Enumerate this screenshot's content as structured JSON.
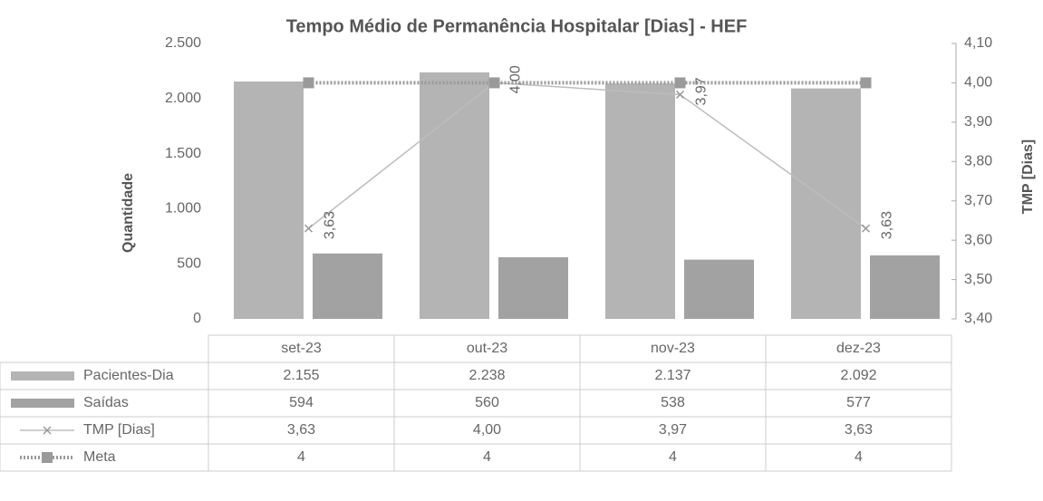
{
  "chart_data": {
    "type": "bar",
    "title": "Tempo Médio de Permanência Hospitalar [Dias] - HEF",
    "ylabel": "Quantidade",
    "y2label": "TMP [Dias]",
    "categories": [
      "set-23",
      "out-23",
      "nov-23",
      "dez-23"
    ],
    "series": [
      {
        "name": "Pacientes-Dia",
        "color": "#b4b4b4",
        "values": [
          2155,
          2238,
          2137,
          2092
        ],
        "value_labels": [
          "2.155",
          "2.238",
          "2.137",
          "2.092"
        ]
      },
      {
        "name": "Saídas",
        "color": "#a2a2a2",
        "values": [
          594,
          560,
          538,
          577
        ]
      },
      {
        "name": "TMP [Dias]",
        "color": "#bdbdbd",
        "type": "line",
        "axis": "y2",
        "values": [
          3.63,
          4.0,
          3.97,
          3.63
        ],
        "value_labels": [
          "3,63",
          "4,00",
          "3,97",
          "3,63"
        ]
      },
      {
        "name": "Meta",
        "color": "#9a9a9a",
        "type": "line",
        "axis": "y2",
        "values": [
          4,
          4,
          4,
          4
        ]
      }
    ],
    "ylim": [
      0,
      2500
    ],
    "yticks": [
      0,
      500,
      {
        "value": 1000,
        "label": "1.000"
      },
      {
        "value": 1500,
        "label": "1.500"
      },
      {
        "value": 2000,
        "label": "2.000"
      },
      {
        "value": 2500,
        "label": "2.500"
      }
    ],
    "y2lim": [
      3.4,
      4.1
    ],
    "y2ticks": [
      {
        "value": 3.4,
        "label": "3,40"
      },
      {
        "value": 3.5,
        "label": "3,50"
      },
      {
        "value": 3.6,
        "label": "3,60"
      },
      {
        "value": 3.7,
        "label": "3,70"
      },
      {
        "value": 3.8,
        "label": "3,80"
      },
      {
        "value": 3.9,
        "label": "3,90"
      },
      {
        "value": 4.0,
        "label": "4,00"
      },
      {
        "value": 4.1,
        "label": "4,10"
      }
    ],
    "grid": false
  }
}
